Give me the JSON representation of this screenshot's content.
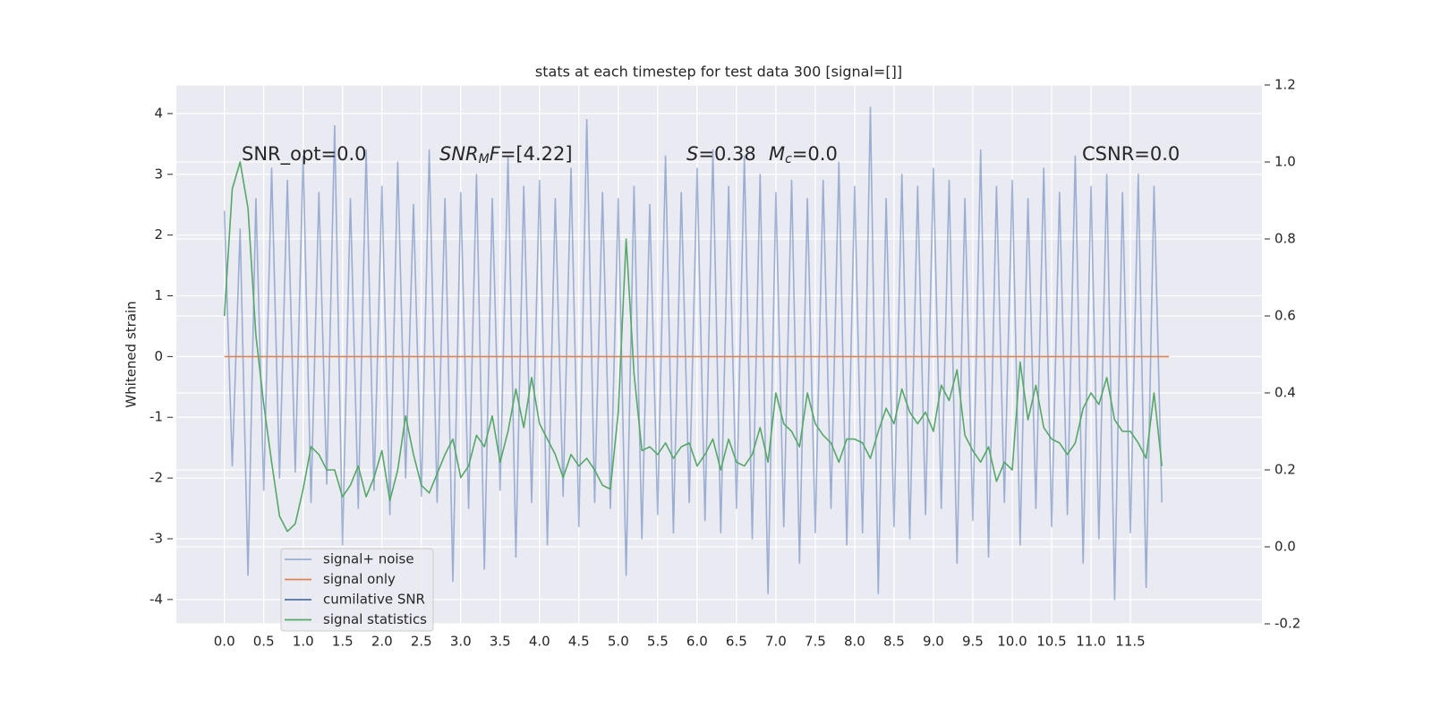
{
  "chart_data": {
    "type": "line",
    "title": "stats at each timestep for test data 300 [signal=[]]",
    "ylabel": "Whitened strain",
    "grid": true,
    "background": "#eaeaf2",
    "legend": "lower left",
    "xlim": [
      -0.61,
      13.17
    ],
    "ylim": [
      -4.4,
      4.47
    ],
    "y2lim": [
      -0.2,
      1.2
    ],
    "xticks": [
      {
        "value": 0,
        "label": "0.0"
      },
      0.5,
      {
        "value": 1,
        "label": "1.0"
      },
      1.5,
      {
        "value": 2,
        "label": "2.0"
      },
      2.5,
      {
        "value": 3,
        "label": "3.0"
      },
      3.5,
      {
        "value": 4,
        "label": "4.0"
      },
      4.5,
      {
        "value": 5,
        "label": "5.0"
      },
      5.5,
      {
        "value": 6,
        "label": "6.0"
      },
      6.5,
      {
        "value": 7,
        "label": "7.0"
      },
      7.5,
      {
        "value": 8,
        "label": "8.0"
      },
      8.5,
      {
        "value": 9,
        "label": "9.0"
      },
      9.5,
      {
        "value": 10,
        "label": "10.0"
      },
      10.5,
      {
        "value": 11,
        "label": "11.0"
      },
      11.5
    ],
    "yticks": [
      -4,
      -3,
      -2,
      -1,
      0,
      1,
      2,
      3,
      4
    ],
    "y2ticks": [
      -0.2,
      {
        "value": 0,
        "label": "0.0"
      },
      0.2,
      0.4,
      0.6,
      0.8,
      {
        "value": 1,
        "label": "1.0"
      },
      1.2
    ],
    "x": [
      0,
      0.1,
      0.2,
      0.3,
      0.4,
      0.5,
      0.6,
      0.7,
      0.8,
      0.9,
      1,
      1.1,
      1.2,
      1.3,
      1.4,
      1.5,
      1.6,
      1.7,
      1.8,
      1.9,
      2,
      2.1,
      2.2,
      2.3,
      2.4,
      2.5,
      2.6,
      2.7,
      2.8,
      2.9,
      3,
      3.1,
      3.2,
      3.3,
      3.4,
      3.5,
      3.6,
      3.7,
      3.8,
      3.9,
      4,
      4.1,
      4.2,
      4.3,
      4.4,
      4.5,
      4.6,
      4.7,
      4.8,
      4.9,
      5,
      5.1,
      5.2,
      5.3,
      5.4,
      5.5,
      5.6,
      5.7,
      5.8,
      5.9,
      6,
      6.1,
      6.2,
      6.3,
      6.4,
      6.5,
      6.6,
      6.7,
      6.8,
      6.9,
      7,
      7.1,
      7.2,
      7.3,
      7.4,
      7.5,
      7.6,
      7.7,
      7.8,
      7.9,
      8,
      8.1,
      8.2,
      8.3,
      8.4,
      8.5,
      8.6,
      8.7,
      8.8,
      8.9,
      9,
      9.1,
      9.2,
      9.3,
      9.4,
      9.5,
      9.6,
      9.7,
      9.8,
      9.9,
      10,
      10.1,
      10.2,
      10.3,
      10.4,
      10.5,
      10.6,
      10.7,
      10.8,
      10.9,
      11,
      11.1,
      11.2,
      11.3,
      11.4,
      11.5,
      11.6,
      11.7,
      11.8,
      11.9
    ],
    "series": [
      {
        "name": "signal+ noise",
        "color": "#4c72b0",
        "opacity": 0.5,
        "values": [
          2.4,
          -1.8,
          2.1,
          -3.6,
          2.6,
          -2.2,
          3.1,
          -2.0,
          2.9,
          -1.9,
          3.3,
          -2.4,
          2.7,
          -2.1,
          3.8,
          -3.1,
          2.6,
          -2.5,
          3.4,
          -2.2,
          2.8,
          -2.6,
          3.2,
          -2.0,
          2.5,
          -2.3,
          3.4,
          -2.4,
          2.6,
          -3.7,
          2.7,
          -2.5,
          3.0,
          -3.5,
          2.6,
          -2.2,
          3.3,
          -3.3,
          2.8,
          -2.4,
          2.9,
          -3.1,
          2.6,
          -2.3,
          3.1,
          -2.8,
          3.9,
          -2.4,
          2.7,
          -2.5,
          2.6,
          -3.6,
          2.8,
          -3.0,
          2.5,
          -2.6,
          3.3,
          -2.9,
          2.7,
          -2.4,
          3.1,
          -2.7,
          3.4,
          -2.9,
          2.8,
          -2.5,
          3.3,
          -3.0,
          3.0,
          -3.9,
          2.7,
          -2.8,
          2.9,
          -3.4,
          2.6,
          -2.9,
          2.9,
          -2.5,
          3.2,
          -3.1,
          2.8,
          -2.9,
          4.1,
          -3.9,
          2.6,
          -2.8,
          3.0,
          -3.0,
          2.8,
          -2.6,
          3.1,
          -2.5,
          2.9,
          -3.4,
          2.6,
          -2.7,
          3.4,
          -3.3,
          2.8,
          -2.4,
          2.9,
          -3.1,
          2.6,
          -2.5,
          3.1,
          -2.8,
          2.7,
          -2.6,
          3.3,
          -3.4,
          2.8,
          -3.0,
          3.0,
          -4.0,
          2.7,
          -2.9,
          3.0,
          -3.8,
          2.8,
          -2.4
        ]
      },
      {
        "name": "signal only",
        "color": "#dd8452",
        "x": [
          0,
          11.99
        ],
        "values": [
          0,
          0
        ]
      },
      {
        "name": "cumilative SNR",
        "color": "#4c72b0",
        "axis": "y2",
        "x": [],
        "values": []
      },
      {
        "name": "signal statistics",
        "color": "#55a868",
        "axis": "y2",
        "values": [
          0.6,
          0.93,
          1.0,
          0.88,
          0.55,
          0.37,
          0.22,
          0.08,
          0.04,
          0.06,
          0.15,
          0.26,
          0.24,
          0.2,
          0.2,
          0.13,
          0.16,
          0.21,
          0.13,
          0.18,
          0.25,
          0.12,
          0.2,
          0.34,
          0.24,
          0.16,
          0.14,
          0.19,
          0.24,
          0.28,
          0.18,
          0.21,
          0.29,
          0.26,
          0.34,
          0.22,
          0.3,
          0.41,
          0.31,
          0.44,
          0.32,
          0.28,
          0.24,
          0.18,
          0.24,
          0.21,
          0.23,
          0.2,
          0.16,
          0.15,
          0.35,
          0.8,
          0.45,
          0.25,
          0.26,
          0.24,
          0.27,
          0.23,
          0.26,
          0.27,
          0.21,
          0.24,
          0.28,
          0.2,
          0.28,
          0.22,
          0.21,
          0.24,
          0.31,
          0.22,
          0.4,
          0.32,
          0.3,
          0.26,
          0.4,
          0.32,
          0.29,
          0.27,
          0.22,
          0.28,
          0.28,
          0.27,
          0.23,
          0.3,
          0.36,
          0.32,
          0.41,
          0.35,
          0.32,
          0.35,
          0.3,
          0.42,
          0.38,
          0.46,
          0.29,
          0.25,
          0.22,
          0.26,
          0.17,
          0.22,
          0.2,
          0.48,
          0.33,
          0.42,
          0.31,
          0.28,
          0.27,
          0.24,
          0.27,
          0.36,
          0.4,
          0.37,
          0.44,
          0.33,
          0.3,
          0.3,
          0.27,
          0.23,
          0.4,
          0.21
        ]
      }
    ],
    "annotations": [
      {
        "parts": [
          {
            "text": "SNR_opt=0.0"
          }
        ]
      },
      {
        "parts": [
          {
            "text": "SNR",
            "italic": true
          },
          {
            "text": "M",
            "italic": true,
            "sub": true
          },
          {
            "text": "F",
            "italic": true
          },
          {
            "text": "=[4.22]"
          }
        ]
      },
      {
        "parts": [
          {
            "text": "S",
            "italic": true
          },
          {
            "text": "=0.38"
          }
        ]
      },
      {
        "parts": [
          {
            "text": "M",
            "italic": true
          },
          {
            "text": "c",
            "italic": true,
            "sub": true
          },
          {
            "text": "=0.0"
          }
        ]
      },
      {
        "parts": [
          {
            "text": "CSNR=0.0"
          }
        ]
      }
    ]
  }
}
